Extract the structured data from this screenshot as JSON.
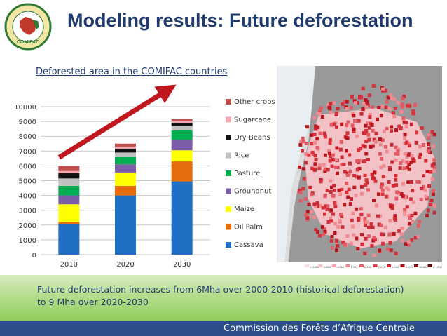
{
  "slide": {
    "title": "Modeling results: Future deforestation",
    "logo_text": "COMIFAC",
    "caption_line1": "Future deforestation increases from 6Mha over 2000-2010 (historical deforestation)",
    "caption_line2": "to 9 Mha over 2020-2030",
    "footer": "Commission des Forêts d’Afrique Centrale"
  },
  "map": {
    "legend_labels": [
      "> 0.000",
      "0.050",
      "1.000",
      "1.500",
      "2.000",
      "2.000",
      "5.000",
      "8.000",
      "10.000",
      "< 19.400"
    ]
  },
  "colors": {
    "title": "#1f3a6e",
    "arrow": "#c0161e",
    "footer_bg": "#2b4d89"
  },
  "chart_data": {
    "type": "bar",
    "stacked": true,
    "title": "Deforested area in the COMIFAC countries",
    "categories": [
      "2010",
      "2020",
      "2030"
    ],
    "ylim": [
      0,
      10000
    ],
    "yticks": [
      0,
      1000,
      2000,
      3000,
      4000,
      5000,
      6000,
      7000,
      8000,
      9000,
      10000
    ],
    "legend_position": "right",
    "series": [
      {
        "name": "Cassava",
        "color": "#1f6fc4",
        "values": [
          2050,
          4000,
          4950
        ]
      },
      {
        "name": "Oil Palm",
        "color": "#e46c0a",
        "values": [
          150,
          650,
          1350
        ]
      },
      {
        "name": "Maize",
        "color": "#ffff00",
        "values": [
          1200,
          900,
          750
        ]
      },
      {
        "name": "Groundnut",
        "color": "#7c5ea8",
        "values": [
          600,
          550,
          700
        ]
      },
      {
        "name": "Pasture",
        "color": "#00b050",
        "values": [
          650,
          500,
          650
        ]
      },
      {
        "name": "Rice",
        "color": "#c0c0c0",
        "values": [
          500,
          300,
          300
        ]
      },
      {
        "name": "Dry Beans",
        "color": "#111111",
        "values": [
          350,
          250,
          200
        ]
      },
      {
        "name": "Sugarcane",
        "color": "#f4a6b0",
        "values": [
          150,
          150,
          150
        ]
      },
      {
        "name": "Other crops",
        "color": "#c0504d",
        "values": [
          350,
          200,
          100
        ]
      }
    ]
  }
}
